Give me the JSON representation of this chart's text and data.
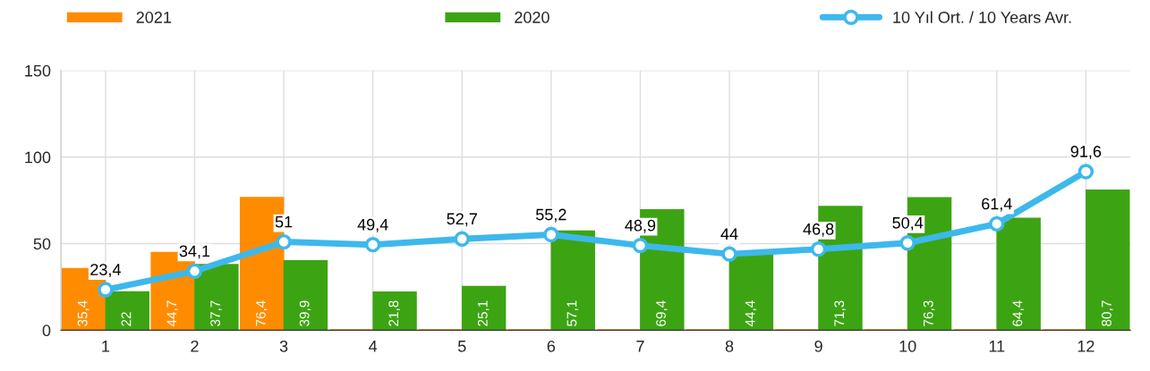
{
  "chart_data": {
    "type": "bar",
    "categories": [
      "1",
      "2",
      "3",
      "4",
      "5",
      "6",
      "7",
      "8",
      "9",
      "10",
      "11",
      "12"
    ],
    "series": [
      {
        "name": "2021",
        "color": "#ff8c00",
        "values": [
          35.4,
          44.7,
          76.4,
          0,
          0,
          0,
          0,
          0,
          0,
          0,
          0,
          0
        ],
        "value_labels": [
          "35,4",
          "44,7",
          "76,4",
          null,
          null,
          null,
          null,
          null,
          null,
          null,
          null,
          null
        ]
      },
      {
        "name": "2020",
        "color": "#3ca413",
        "values": [
          22,
          37.7,
          39.9,
          21.8,
          25.1,
          57.1,
          69.4,
          44.4,
          71.3,
          76.3,
          64.4,
          80.7
        ],
        "value_labels": [
          "22",
          "37,7",
          "39,9",
          "21,8",
          "25,1",
          "57,1",
          "69,4",
          "44,4",
          "71,3",
          "76,3",
          "64,4",
          "80,7"
        ]
      },
      {
        "name": "10 Yıl Ort. / 10 Years Avr.",
        "type": "line",
        "color": "#3db8ec",
        "marker": "circle",
        "values": [
          23.4,
          34.1,
          51,
          49.4,
          52.7,
          55.2,
          48.9,
          44,
          46.8,
          50.4,
          61.4,
          91.6
        ],
        "value_labels": [
          "23,4",
          "34,1",
          "51",
          "49,4",
          "52,7",
          "55,2",
          "48,9",
          "44",
          "46,8",
          "50,4",
          "61,4",
          "91,6"
        ]
      }
    ],
    "ylim": [
      0,
      150
    ],
    "yticks": [
      0,
      50,
      100,
      150
    ],
    "grid": true,
    "legend": "top"
  }
}
